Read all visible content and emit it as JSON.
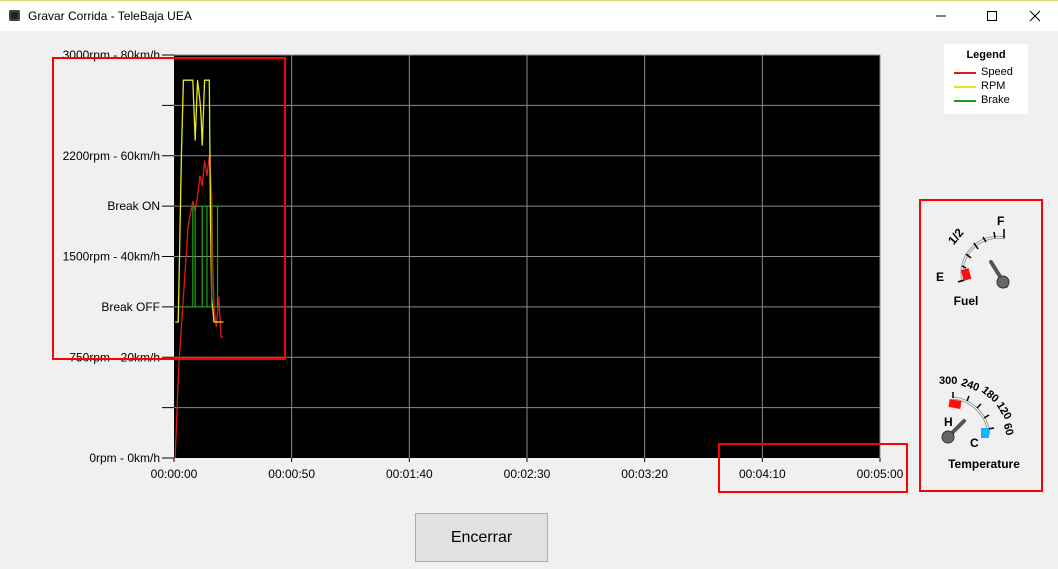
{
  "window": {
    "title": "Gravar Corrida - TeleBaja  UEA",
    "controls": {
      "minimize": "minimize-icon",
      "maximize": "maximize-icon",
      "close": "close-icon"
    }
  },
  "chart_data": {
    "type": "line",
    "y_tick_labels": [
      "3000rpm - 80km/h",
      "2200rpm - 60km/h",
      "Break ON",
      "1500rpm - 40km/h",
      "Break OFF",
      "750rpm - 20km/h",
      "0rpm - 0km/h"
    ],
    "x_tick_labels": [
      "00:00:00",
      "00:00:50",
      "00:01:40",
      "00:02:30",
      "00:03:20",
      "00:04:10",
      "00:05:00"
    ],
    "xlim": [
      0,
      300
    ],
    "ylim": [
      0,
      8
    ],
    "grid": true,
    "background": "#000000",
    "legend_position": "top-right",
    "legend": {
      "title": "Legend",
      "items": [
        {
          "name": "Speed",
          "color": "#e11919"
        },
        {
          "name": "RPM",
          "color": "#e8e81e"
        },
        {
          "name": "Brake",
          "color": "#1b9b1b"
        }
      ]
    },
    "series": [
      {
        "name": "Speed",
        "color": "#e11919",
        "x": [
          0.5,
          2,
          4,
          6,
          8,
          9,
          10,
          11,
          12,
          13,
          14,
          15,
          16,
          16.5,
          17,
          18,
          19,
          20,
          21
        ],
        "y": [
          0,
          1.8,
          3.2,
          4.6,
          5.1,
          4.9,
          5.2,
          5.6,
          5.4,
          5.9,
          5.6,
          6,
          5.2,
          3.8,
          3,
          2.6,
          3.2,
          2.4,
          2.4
        ]
      },
      {
        "name": "RPM",
        "color": "#e8e81e",
        "x": [
          0.5,
          1.8,
          3.2,
          4,
          5,
          6,
          7,
          8,
          9,
          10,
          11,
          11.5,
          12,
          13,
          14,
          15,
          15.5,
          16,
          17,
          18,
          19,
          20,
          21
        ],
        "y": [
          2.7,
          2.7,
          6.1,
          7.5,
          7.5,
          7.5,
          7.5,
          7.5,
          6.3,
          7.5,
          7.1,
          6.8,
          6.2,
          7.5,
          7.5,
          7.5,
          4.8,
          3.2,
          2.7,
          2.7,
          2.7,
          2.7,
          2.7
        ]
      },
      {
        "name": "Brake",
        "color": "#1b9b1b",
        "x": [
          2,
          8,
          8,
          9,
          9,
          12,
          12,
          14,
          14,
          16,
          16,
          18.5,
          18.5,
          19.5
        ],
        "y": [
          3,
          3,
          5,
          5,
          3,
          3,
          5,
          5,
          3,
          3,
          5,
          5,
          3,
          3
        ]
      }
    ]
  },
  "gauges": {
    "fuel": {
      "title": "Fuel",
      "labels": {
        "empty": "E",
        "half": "1/2",
        "full": "F"
      },
      "needle_fraction": 0.62,
      "low_color": "#ff1010",
      "icon": "fuel-gauge-icon"
    },
    "temperature": {
      "title": "Temperature",
      "labels": {
        "hot": "H",
        "cold": "C"
      },
      "scale": [
        "300",
        "240",
        "180",
        "120",
        "60"
      ],
      "needle_value": 200,
      "hot_color": "#ff1010",
      "cold_color": "#1ab0ff",
      "icon": "temperature-gauge-icon"
    }
  },
  "actions": {
    "end_button": "Encerrar"
  },
  "highlight_color": "#ff0000"
}
